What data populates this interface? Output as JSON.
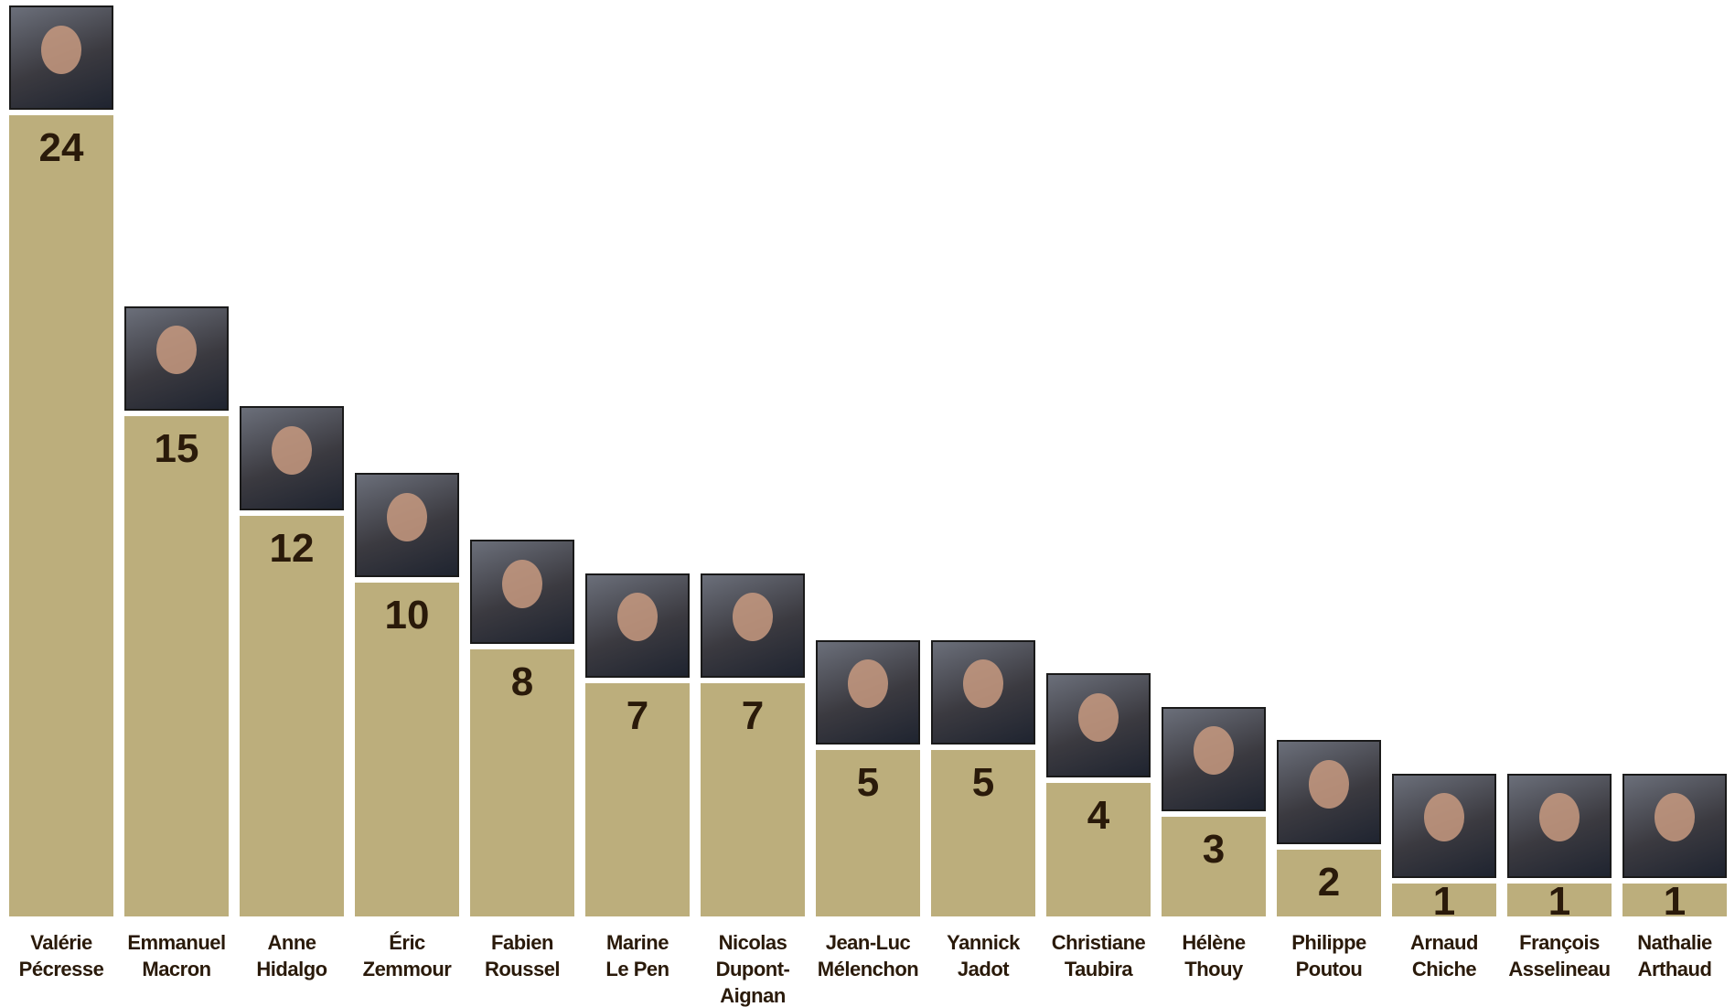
{
  "chart_data": {
    "type": "bar",
    "categories": [
      "Valérie\nPécresse",
      "Emmanuel\nMacron",
      "Anne\nHidalgo",
      "Éric\nZemmour",
      "Fabien\nRoussel",
      "Marine\nLe Pen",
      "Nicolas\nDupont-\nAignan",
      "Jean-Luc\nMélenchon",
      "Yannick\nJadot",
      "Christiane\nTaubira",
      "Hélène\nThouy",
      "Philippe\nPoutou",
      "Arnaud\nChiche",
      "François\nAsselineau",
      "Nathalie\nArthaud"
    ],
    "values": [
      24,
      15,
      12,
      10,
      8,
      7,
      7,
      5,
      5,
      4,
      3,
      2,
      1,
      1,
      1
    ],
    "color": "#bcae7c"
  }
}
